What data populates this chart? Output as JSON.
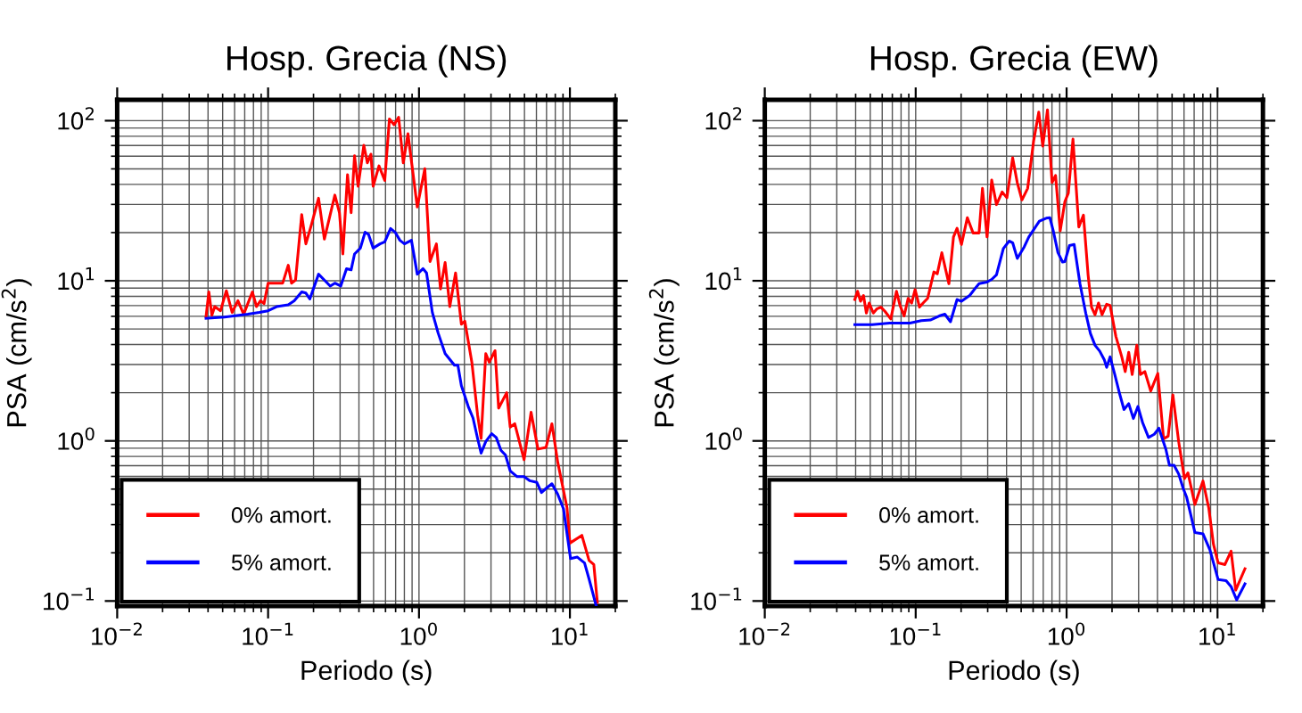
{
  "chart_data": [
    {
      "type": "line",
      "title": "Hosp. Grecia (NS)",
      "xlabel": "Periodo (s)",
      "ylabel": "PSA (cm/s$^{2}$)",
      "log": "xy",
      "grid": true,
      "legend": "bottom left",
      "marker": "none",
      "line_style": "solid",
      "xlim": [
        0.01,
        20
      ],
      "ylim": [
        0.093,
        135
      ],
      "xticks": [
        {
          "value": 0.01,
          "label": "10$^{−2}$"
        },
        {
          "value": 0.1,
          "label": "10$^{−1}$"
        },
        {
          "value": 1,
          "label": "10$^{0}$"
        },
        {
          "value": 10,
          "label": "10$^{1}$"
        }
      ],
      "yticks": [
        {
          "value": 0.1,
          "label": "10$^{−1}$"
        },
        {
          "value": 1,
          "label": "10$^{0}$"
        },
        {
          "value": 10,
          "label": "10$^{1}$"
        },
        {
          "value": 100,
          "label": "10$^{2}$"
        }
      ],
      "series": [
        {
          "name": "0% amort.",
          "color": "#ff0000",
          "x": [
            0.0388,
            0.0405,
            0.0424,
            0.0443,
            0.0484,
            0.0529,
            0.0578,
            0.0631,
            0.0689,
            0.0787,
            0.0838,
            0.0891,
            0.094,
            0.1,
            0.125,
            0.136,
            0.143,
            0.152,
            0.167,
            0.178,
            0.194,
            0.216,
            0.236,
            0.277,
            0.297,
            0.313,
            0.336,
            0.355,
            0.374,
            0.395,
            0.431,
            0.455,
            0.48,
            0.497,
            0.543,
            0.593,
            0.637,
            0.684,
            0.733,
            0.787,
            0.845,
            0.974,
            1.093,
            1.183,
            1.304,
            1.388,
            1.49,
            1.6,
            1.747,
            1.909,
            2.013,
            2.24,
            2.445,
            2.58,
            2.77,
            2.92,
            3.19,
            3.37,
            3.81,
            4.02,
            4.31,
            4.97,
            5.53,
            6.14,
            6.95,
            7.6,
            8.3,
            9.57,
            10.0,
            12.0,
            13.4,
            14.4,
            15.2
          ],
          "values": [
            5.98,
            8.52,
            6.08,
            6.9,
            6.5,
            8.67,
            6.34,
            7.51,
            6.18,
            8.52,
            6.9,
            7.51,
            7.2,
            9.67,
            9.67,
            12.5,
            9.67,
            10.1,
            25.9,
            17.0,
            22.5,
            32.8,
            18.2,
            34.3,
            26.6,
            14.7,
            46.0,
            26.6,
            60.3,
            38.9,
            70.2,
            54.5,
            61.8,
            38.9,
            52.2,
            42.3,
            102.6,
            94.2,
            105,
            54.5,
            83.0,
            28.9,
            50.1,
            13.2,
            17.0,
            8.89,
            13.0,
            6.9,
            11.2,
            5.36,
            5.59,
            3.1,
            1.45,
            1.035,
            3.51,
            3.1,
            3.66,
            1.6,
            2.0,
            1.22,
            1.28,
            0.763,
            1.51,
            0.889,
            0.912,
            1.28,
            0.738,
            0.382,
            0.23,
            0.257,
            0.179,
            0.169,
            0.098
          ]
        },
        {
          "name": "5% amort.",
          "color": "#0000ff",
          "x": [
            0.0388,
            0.0515,
            0.0733,
            0.0875,
            0.1,
            0.114,
            0.136,
            0.149,
            0.167,
            0.178,
            0.189,
            0.216,
            0.236,
            0.258,
            0.277,
            0.303,
            0.331,
            0.355,
            0.374,
            0.409,
            0.439,
            0.463,
            0.497,
            0.552,
            0.593,
            0.648,
            0.695,
            0.747,
            0.801,
            0.891,
            0.974,
            1.064,
            1.122,
            1.226,
            1.339,
            1.49,
            1.717,
            1.81,
            1.909,
            2.12,
            2.28,
            2.445,
            2.58,
            2.77,
            3.03,
            3.25,
            3.49,
            3.74,
            4.02,
            4.47,
            4.97,
            5.43,
            6.04,
            6.48,
            6.95,
            7.6,
            8.3,
            9.07,
            10.1,
            11.2,
            12.5,
            13.4,
            14.9
          ],
          "values": [
            5.83,
            5.93,
            6.18,
            6.34,
            6.5,
            6.9,
            7.08,
            7.51,
            8.52,
            8.38,
            7.7,
            11.0,
            10.1,
            9.27,
            9.67,
            9.27,
            11.9,
            11.7,
            14.7,
            16.0,
            20.1,
            19.5,
            16.0,
            17.0,
            17.5,
            21.2,
            20.1,
            17.9,
            17.0,
            17.9,
            11.0,
            11.9,
            11.2,
            6.34,
            4.72,
            3.51,
            2.97,
            2.97,
            2.21,
            1.64,
            1.39,
            1.035,
            0.838,
            0.991,
            1.11,
            1.05,
            0.873,
            0.816,
            0.65,
            0.598,
            0.598,
            0.564,
            0.55,
            0.476,
            0.505,
            0.54,
            0.465,
            0.376,
            0.184,
            0.188,
            0.173,
            0.137,
            0.094
          ]
        }
      ]
    },
    {
      "type": "line",
      "title": "Hosp. Grecia (EW)",
      "xlabel": "Periodo (s)",
      "ylabel": "PSA (cm/s$^{2}$)",
      "log": "xy",
      "grid": true,
      "legend": "bottom left",
      "marker": "none",
      "line_style": "solid",
      "xlim": [
        0.01,
        20
      ],
      "ylim": [
        0.093,
        135
      ],
      "xticks": [
        {
          "value": 0.01,
          "label": "10$^{−2}$"
        },
        {
          "value": 0.1,
          "label": "10$^{−1}$"
        },
        {
          "value": 1,
          "label": "10$^{0}$"
        },
        {
          "value": 10,
          "label": "10$^{1}$"
        }
      ],
      "yticks": [
        {
          "value": 0.1,
          "label": "10$^{−1}$"
        },
        {
          "value": 1,
          "label": "10$^{0}$"
        },
        {
          "value": 10,
          "label": "10$^{1}$"
        },
        {
          "value": 100,
          "label": "10$^{2}$"
        }
      ],
      "series": [
        {
          "name": "0% amort.",
          "color": "#ff0000",
          "x": [
            0.0395,
            0.0412,
            0.0431,
            0.0451,
            0.0471,
            0.0492,
            0.0524,
            0.0552,
            0.0588,
            0.0625,
            0.0684,
            0.0746,
            0.0787,
            0.0838,
            0.0891,
            0.094,
            0.0991,
            0.106,
            0.112,
            0.12,
            0.132,
            0.139,
            0.149,
            0.157,
            0.166,
            0.178,
            0.188,
            0.201,
            0.22,
            0.24,
            0.263,
            0.277,
            0.297,
            0.319,
            0.343,
            0.374,
            0.402,
            0.439,
            0.471,
            0.506,
            0.552,
            0.604,
            0.654,
            0.695,
            0.747,
            0.801,
            0.845,
            0.907,
            0.974,
            1.027,
            1.102,
            1.205,
            1.293,
            1.388,
            1.463,
            1.543,
            1.627,
            1.717,
            1.842,
            1.942,
            2.12,
            2.32,
            2.445,
            2.58,
            2.72,
            2.92,
            3.08,
            3.3,
            3.61,
            4.02,
            4.39,
            4.71,
            5.06,
            5.53,
            6.04,
            6.37,
            7.08,
            8.01,
            8.75,
            9.4,
            10.1,
            11.2,
            12.3,
            13.2,
            15.2
          ],
          "values": [
            7.64,
            8.6,
            7.45,
            8.1,
            6.29,
            7.26,
            6.29,
            6.67,
            6.85,
            6.45,
            5.78,
            8.6,
            7.02,
            6.03,
            7.77,
            7.26,
            8.81,
            6.85,
            7.26,
            7.77,
            11.35,
            11.06,
            14.98,
            12.03,
            9.59,
            18.8,
            21.3,
            16.85,
            24.8,
            19.9,
            19.9,
            37.8,
            18.8,
            42.6,
            29.9,
            35.9,
            33.0,
            58.6,
            41.1,
            32.0,
            37.8,
            74.1,
            113,
            69.3,
            117,
            41.1,
            45.5,
            20.5,
            31.2,
            35.3,
            76.7,
            21.7,
            25.7,
            10.9,
            6.85,
            6.14,
            7.26,
            6.14,
            7.14,
            7.02,
            4.5,
            3.35,
            2.71,
            3.58,
            2.6,
            3.96,
            2.6,
            2.71,
            2.05,
            2.64,
            1.03,
            1.07,
            1.94,
            0.988,
            0.581,
            0.632,
            0.401,
            0.562,
            0.381,
            0.226,
            0.173,
            0.169,
            0.205,
            0.117,
            0.159
          ]
        },
        {
          "name": "5% amort.",
          "color": "#0000ff",
          "x": [
            0.0395,
            0.0515,
            0.0671,
            0.0916,
            0.109,
            0.125,
            0.143,
            0.156,
            0.17,
            0.188,
            0.201,
            0.228,
            0.253,
            0.263,
            0.297,
            0.319,
            0.343,
            0.381,
            0.416,
            0.439,
            0.471,
            0.524,
            0.562,
            0.614,
            0.66,
            0.733,
            0.774,
            0.816,
            0.876,
            0.94,
            0.974,
            1.045,
            1.122,
            1.226,
            1.339,
            1.438,
            1.543,
            1.656,
            1.778,
            1.842,
            1.942,
            2.085,
            2.24,
            2.4,
            2.58,
            2.77,
            2.97,
            3.19,
            3.49,
            3.81,
            4.09,
            4.55,
            4.8,
            5.15,
            5.53,
            5.93,
            6.25,
            7.08,
            8.01,
            8.91,
            10.1,
            11.4,
            12.3,
            13.4,
            15.2
          ],
          "values": [
            5.32,
            5.32,
            5.45,
            5.45,
            5.64,
            5.69,
            6.03,
            6.19,
            5.55,
            7.64,
            7.45,
            8.1,
            9.19,
            9.59,
            9.83,
            10.2,
            10.9,
            15.9,
            17.7,
            17.3,
            13.8,
            16.3,
            18.8,
            21.3,
            23.6,
            24.6,
            24.8,
            20.5,
            15.0,
            13.1,
            13.2,
            16.6,
            16.85,
            9.59,
            6.29,
            4.69,
            3.96,
            3.64,
            3.21,
            2.88,
            3.35,
            2.6,
            1.99,
            1.57,
            1.71,
            1.38,
            1.64,
            1.3,
            1.05,
            1.1,
            1.2,
            0.885,
            0.705,
            0.705,
            0.621,
            0.503,
            0.444,
            0.268,
            0.263,
            0.208,
            0.136,
            0.134,
            0.123,
            0.1016,
            0.128
          ]
        }
      ]
    }
  ]
}
